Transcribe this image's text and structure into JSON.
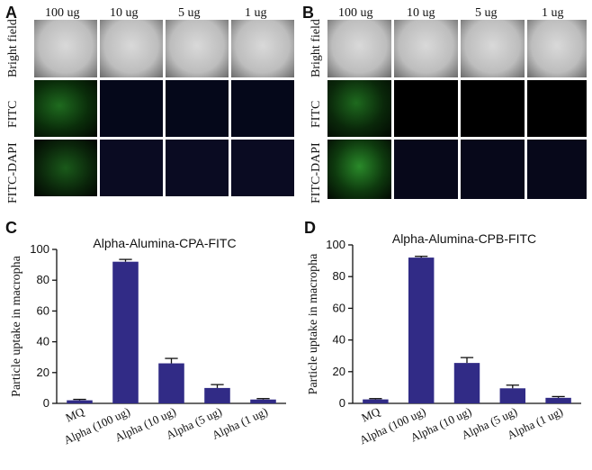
{
  "micrographs": {
    "columns": [
      "100 ug",
      "10 ug",
      "5 ug",
      "1 ug"
    ],
    "rows": [
      "Bright field",
      "FITC",
      "FITC-DAPI"
    ],
    "panels": [
      {
        "letter": "A"
      },
      {
        "letter": "B"
      }
    ]
  },
  "chart_data": [
    {
      "letter": "C",
      "type": "bar",
      "title": "Alpha-Alumina-CPA-FITC",
      "ylabel": "Particle uptake in macropha",
      "categories": [
        "MQ",
        "Alpha (100 ug)",
        "Alpha (10 ug)",
        "Alpha (5 ug)",
        "Alpha (1 ug)"
      ],
      "values": [
        2,
        92,
        26,
        10,
        2.5
      ],
      "errors": [
        0.6,
        1.5,
        3.2,
        2.2,
        0.6
      ],
      "ylim": [
        0,
        100
      ],
      "yticks": [
        "0",
        "20",
        "40",
        "60",
        "80",
        "100"
      ],
      "color": "#312b86"
    },
    {
      "letter": "D",
      "type": "bar",
      "title": "Alpha-Alumina-CPB-FITC",
      "ylabel": "Particle uptake in macropha",
      "categories": [
        "MQ",
        "Alpha (100 ug)",
        "Alpha (10 ug)",
        "Alpha (5 ug)",
        "Alpha (1 ug)"
      ],
      "values": [
        2.5,
        92,
        25.5,
        9.5,
        3.5
      ],
      "errors": [
        0.5,
        0.8,
        3.4,
        2.0,
        0.8
      ],
      "ylim": [
        0,
        100
      ],
      "yticks": [
        "0",
        "20",
        "40",
        "60",
        "80",
        "100"
      ],
      "color": "#312b86"
    }
  ]
}
